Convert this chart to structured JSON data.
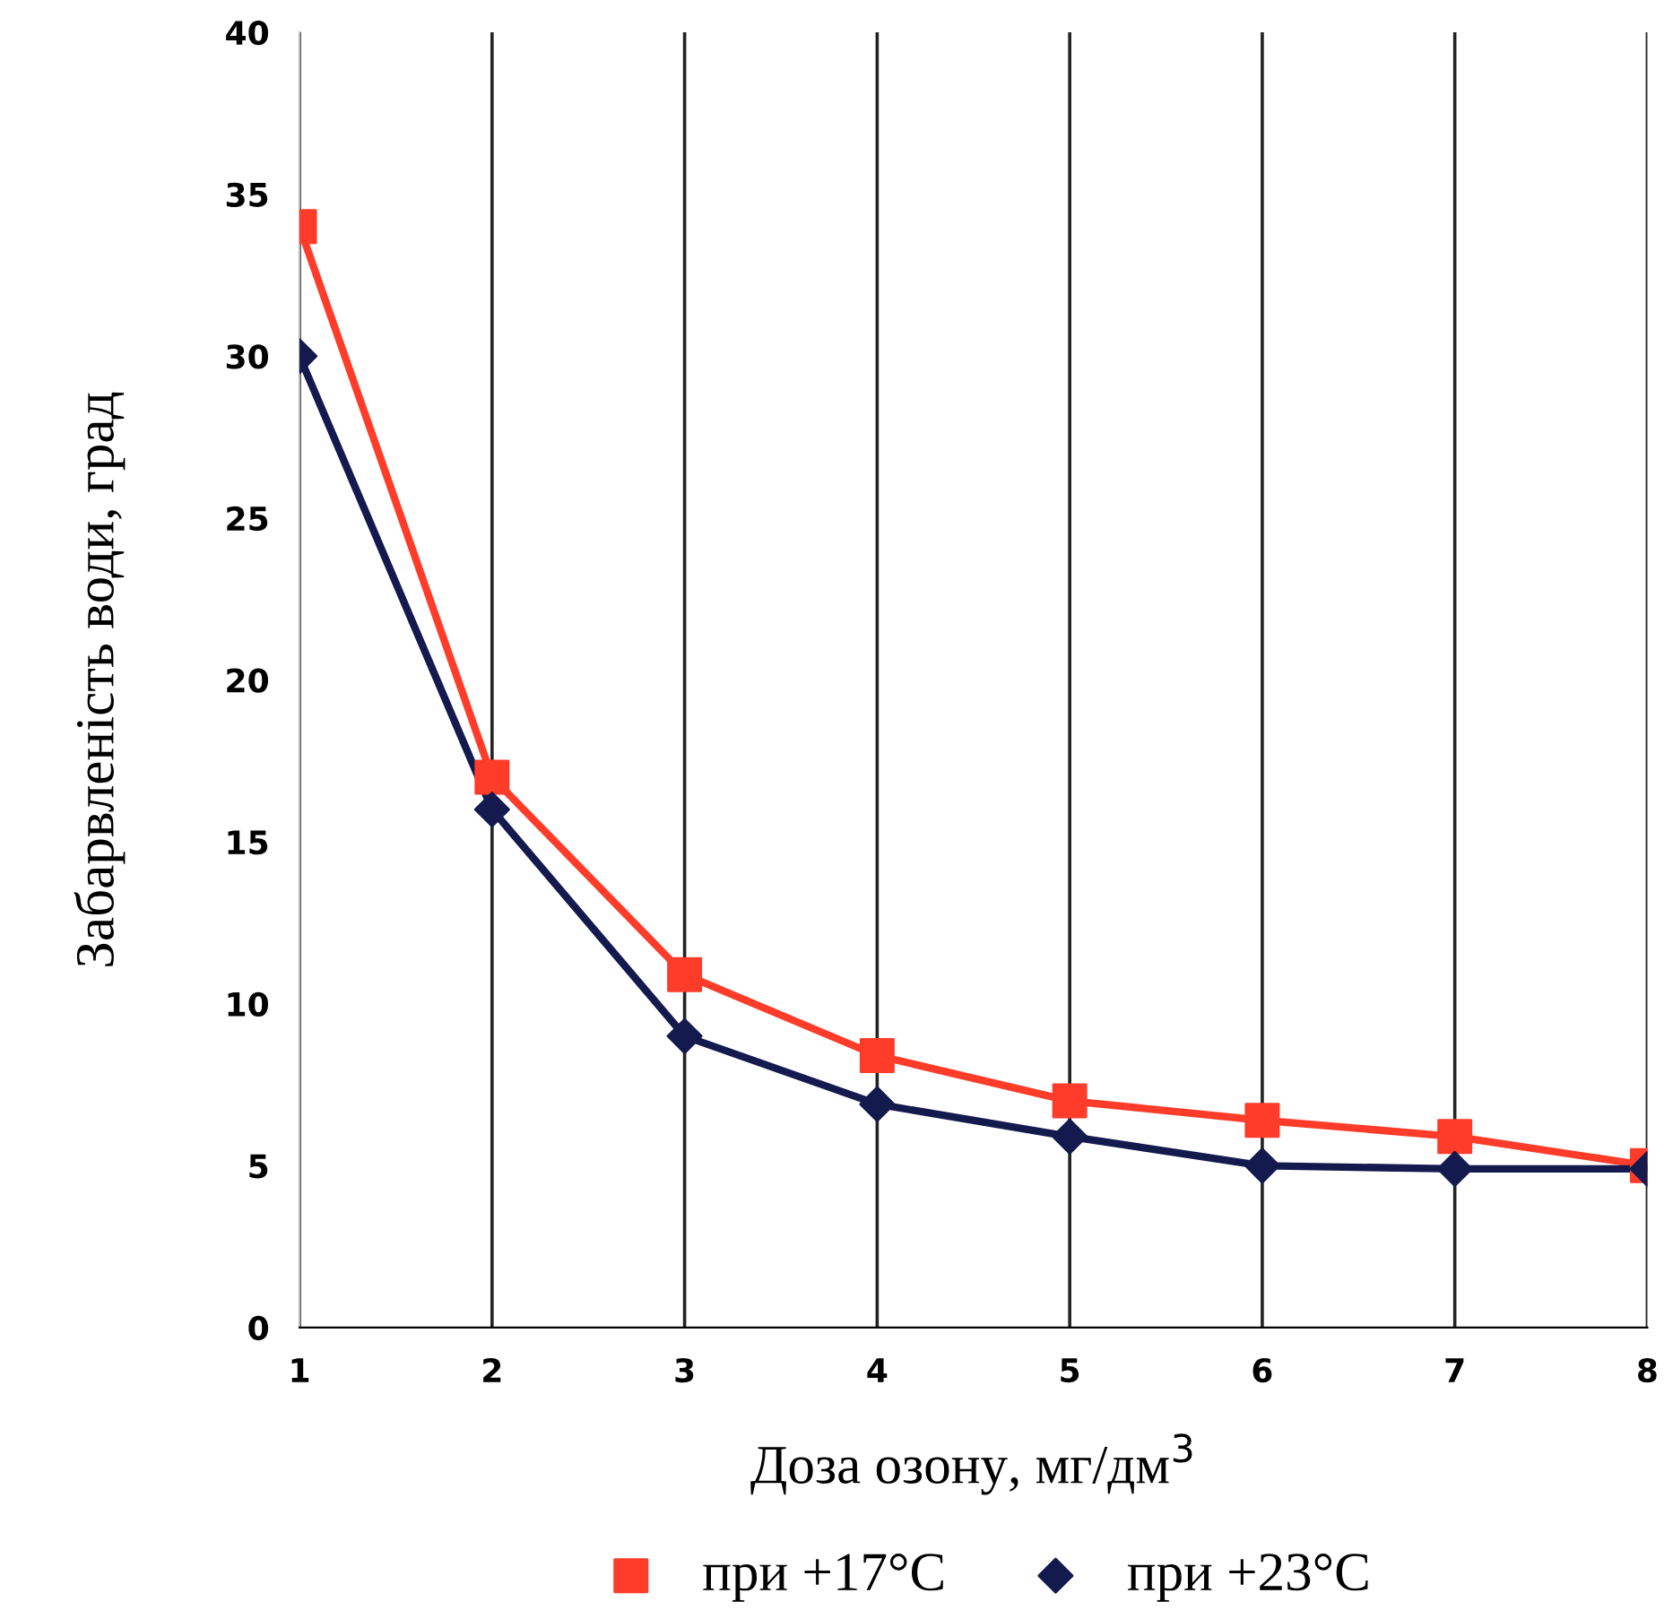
{
  "chart_data": {
    "type": "line",
    "xlabel": "Доза озону, мг/дм$^{3}$",
    "ylabel": "Забарвленість води, град",
    "x": [
      1,
      2,
      3,
      4,
      5,
      6,
      7,
      8
    ],
    "series": [
      {
        "name": "при +17°C",
        "color": "#ff3c2a",
        "marker": "square",
        "values": [
          34,
          17,
          10.9,
          8.4,
          7,
          6.4,
          5.9,
          5
        ]
      },
      {
        "name": "при +23°C",
        "color": "#141a4e",
        "marker": "diamond",
        "values": [
          30,
          16,
          9,
          6.9,
          5.9,
          5,
          4.9,
          4.9
        ]
      }
    ],
    "xlim": [
      1,
      8
    ],
    "ylim": [
      0,
      40
    ],
    "xticks": [
      1,
      2,
      3,
      4,
      5,
      6,
      7,
      8
    ],
    "yticks": [
      0,
      5,
      10,
      15,
      20,
      25,
      30,
      35,
      40
    ],
    "grid": "x",
    "legend": "bottom",
    "line_style": "solid"
  }
}
